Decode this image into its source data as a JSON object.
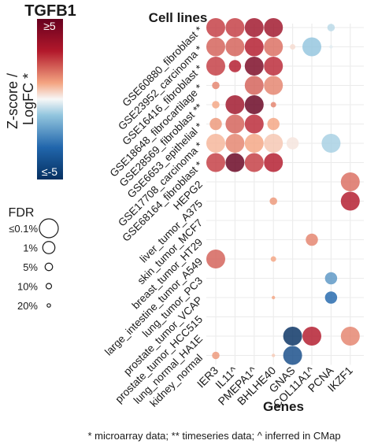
{
  "chart_data": {
    "type": "bubble-heatmap",
    "title": "TGFB1",
    "y_axis_title": "Cell lines",
    "x_axis_title": "Genes",
    "color_legend": {
      "title": "Z-score / LogFC *",
      "title_lines": [
        "Z-score /",
        "LogFC *"
      ],
      "range": [
        -5,
        5
      ],
      "max_label": "≥5",
      "min_label": "≤-5",
      "low_color": "#053061",
      "mid_color": "#f7f7f7",
      "high_color": "#67001f"
    },
    "size_legend": {
      "title": "FDR",
      "items": [
        {
          "label": "≤0.1%",
          "fdr": 0.001
        },
        {
          "label": "1%",
          "fdr": 0.01
        },
        {
          "label": "5%",
          "fdr": 0.05
        },
        {
          "label": "10%",
          "fdr": 0.1
        },
        {
          "label": "20%",
          "fdr": 0.2
        }
      ]
    },
    "genes": [
      "IER3",
      "IL11^",
      "PMEPA1^",
      "BHLHE40",
      "GNAS",
      "COL11A1^",
      "PCNA",
      "IKZF1"
    ],
    "cell_lines": [
      "GSE60880_fibroblast *",
      "GSE23952_carcinoma *",
      "GSE16416_fibroblast *",
      "GSE18648_fibrocartilage *",
      "GSE28569_fibroblast **",
      "GSE6653_epithelial *",
      "GSE17708_carcinoma *",
      "GSE68164_fibroblast *",
      "HEPG2",
      "liver_tumor_A375",
      "skin_tumor_MCF7",
      "breast_tumor_HT29",
      "large_intestine_tumor_A549",
      "lung_tumor_PC3",
      "prostate_tumor_VCAP",
      "prostate_tumor_HCC515",
      "lung_normal_HA1E",
      "kidney_normal"
    ],
    "points": [
      {
        "cell": "GSE60880_fibroblast *",
        "gene": "IER3",
        "value": 2.5,
        "fdr": 0.001
      },
      {
        "cell": "GSE60880_fibroblast *",
        "gene": "IL11^",
        "value": 2.5,
        "fdr": 0.001
      },
      {
        "cell": "GSE60880_fibroblast *",
        "gene": "PMEPA1^",
        "value": 3.5,
        "fdr": 0.001
      },
      {
        "cell": "GSE60880_fibroblast *",
        "gene": "BHLHE40",
        "value": 3.5,
        "fdr": 0.001
      },
      {
        "cell": "GSE60880_fibroblast *",
        "gene": "PCNA",
        "value": -0.6,
        "fdr": 0.05
      },
      {
        "cell": "GSE23952_carcinoma *",
        "gene": "IER3",
        "value": 2.0,
        "fdr": 0.001
      },
      {
        "cell": "GSE23952_carcinoma *",
        "gene": "IL11^",
        "value": 2.0,
        "fdr": 0.001
      },
      {
        "cell": "GSE23952_carcinoma *",
        "gene": "PMEPA1^",
        "value": 3.0,
        "fdr": 0.001
      },
      {
        "cell": "GSE23952_carcinoma *",
        "gene": "BHLHE40",
        "value": 1.8,
        "fdr": 0.001
      },
      {
        "cell": "GSE23952_carcinoma *",
        "gene": "GNAS",
        "value": 0.3,
        "fdr": 0.1
      },
      {
        "cell": "GSE23952_carcinoma *",
        "gene": "COL11A1^",
        "value": -1.0,
        "fdr": 0.001
      },
      {
        "cell": "GSE23952_carcinoma *",
        "gene": "PCNA",
        "value": -0.2,
        "fdr": 0.2
      },
      {
        "cell": "GSE16416_fibroblast *",
        "gene": "IER3",
        "value": 2.5,
        "fdr": 0.001
      },
      {
        "cell": "GSE16416_fibroblast *",
        "gene": "IL11^",
        "value": 3.0,
        "fdr": 0.01
      },
      {
        "cell": "GSE16416_fibroblast *",
        "gene": "PMEPA1^",
        "value": 4.5,
        "fdr": 0.001
      },
      {
        "cell": "GSE16416_fibroblast *",
        "gene": "BHLHE40",
        "value": 2.8,
        "fdr": 0.001
      },
      {
        "cell": "GSE18648_fibrocartilage *",
        "gene": "IER3",
        "value": 1.5,
        "fdr": 0.05
      },
      {
        "cell": "GSE18648_fibrocartilage *",
        "gene": "PMEPA1^",
        "value": 2.0,
        "fdr": 0.001
      },
      {
        "cell": "GSE18648_fibrocartilage *",
        "gene": "BHLHE40",
        "value": 1.5,
        "fdr": 0.001
      },
      {
        "cell": "GSE28569_fibroblast **",
        "gene": "IER3",
        "value": 1.0,
        "fdr": 0.05
      },
      {
        "cell": "GSE28569_fibroblast **",
        "gene": "IL11^",
        "value": 3.5,
        "fdr": 0.001
      },
      {
        "cell": "GSE28569_fibroblast **",
        "gene": "PMEPA1^",
        "value": 5.0,
        "fdr": 0.001
      },
      {
        "cell": "GSE28569_fibroblast **",
        "gene": "BHLHE40",
        "value": 1.5,
        "fdr": 0.1
      },
      {
        "cell": "GSE6653_epithelial *",
        "gene": "IER3",
        "value": 1.2,
        "fdr": 0.01
      },
      {
        "cell": "GSE6653_epithelial *",
        "gene": "IL11^",
        "value": 2.0,
        "fdr": 0.001
      },
      {
        "cell": "GSE6653_epithelial *",
        "gene": "PMEPA1^",
        "value": 2.8,
        "fdr": 0.001
      },
      {
        "cell": "GSE6653_epithelial *",
        "gene": "BHLHE40",
        "value": 1.0,
        "fdr": 0.01
      },
      {
        "cell": "GSE17708_carcinoma *",
        "gene": "IER3",
        "value": 0.8,
        "fdr": 0.001
      },
      {
        "cell": "GSE17708_carcinoma *",
        "gene": "IL11^",
        "value": 1.5,
        "fdr": 0.001
      },
      {
        "cell": "GSE17708_carcinoma *",
        "gene": "PMEPA1^",
        "value": 1.0,
        "fdr": 0.001
      },
      {
        "cell": "GSE17708_carcinoma *",
        "gene": "BHLHE40",
        "value": 0.6,
        "fdr": 0.001
      },
      {
        "cell": "GSE17708_carcinoma *",
        "gene": "GNAS",
        "value": 0.2,
        "fdr": 0.01
      },
      {
        "cell": "GSE17708_carcinoma *",
        "gene": "PCNA",
        "value": -0.8,
        "fdr": 0.001
      },
      {
        "cell": "GSE68164_fibroblast *",
        "gene": "IER3",
        "value": 2.5,
        "fdr": 0.001
      },
      {
        "cell": "GSE68164_fibroblast *",
        "gene": "IL11^",
        "value": 5.0,
        "fdr": 0.001
      },
      {
        "cell": "GSE68164_fibroblast *",
        "gene": "PMEPA1^",
        "value": 2.5,
        "fdr": 0.001
      },
      {
        "cell": "GSE68164_fibroblast *",
        "gene": "BHLHE40",
        "value": 3.0,
        "fdr": 0.001
      },
      {
        "cell": "HEPG2",
        "gene": "IKZF1",
        "value": 1.8,
        "fdr": 0.001
      },
      {
        "cell": "liver_tumor_A375",
        "gene": "BHLHE40",
        "value": 1.2,
        "fdr": 0.05
      },
      {
        "cell": "liver_tumor_A375",
        "gene": "IKZF1",
        "value": 3.0,
        "fdr": 0.001
      },
      {
        "cell": "breast_tumor_HT29",
        "gene": "COL11A1^",
        "value": 1.5,
        "fdr": 0.01
      },
      {
        "cell": "large_intestine_tumor_A549",
        "gene": "IER3",
        "value": 2.0,
        "fdr": 0.001
      },
      {
        "cell": "large_intestine_tumor_A549",
        "gene": "BHLHE40",
        "value": 1.0,
        "fdr": 0.1
      },
      {
        "cell": "lung_tumor_PC3",
        "gene": "PCNA",
        "value": -2.0,
        "fdr": 0.01
      },
      {
        "cell": "prostate_tumor_VCAP",
        "gene": "BHLHE40",
        "value": 1.0,
        "fdr": 0.2
      },
      {
        "cell": "prostate_tumor_VCAP",
        "gene": "PCNA",
        "value": -3.0,
        "fdr": 0.01
      },
      {
        "cell": "lung_normal_HA1E",
        "gene": "GNAS",
        "value": -5.0,
        "fdr": 0.001
      },
      {
        "cell": "lung_normal_HA1E",
        "gene": "COL11A1^",
        "value": 3.0,
        "fdr": 0.001
      },
      {
        "cell": "lung_normal_HA1E",
        "gene": "IKZF1",
        "value": 1.5,
        "fdr": 0.001
      },
      {
        "cell": "kidney_normal",
        "gene": "IER3",
        "value": 1.2,
        "fdr": 0.05
      },
      {
        "cell": "kidney_normal",
        "gene": "BHLHE40",
        "value": 0.5,
        "fdr": 0.2
      },
      {
        "cell": "kidney_normal",
        "gene": "GNAS",
        "value": -4.0,
        "fdr": 0.001
      }
    ]
  },
  "footnote": "* microarray data; ** timeseries data; ^ inferred in CMap"
}
